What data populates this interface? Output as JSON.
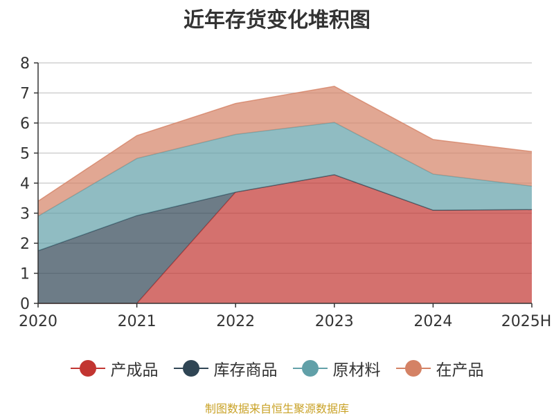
{
  "chart_data": {
    "type": "area",
    "stacked": true,
    "title": "近年存货变化堆积图",
    "ylabel": "",
    "xlabel": "",
    "categories": [
      "2020",
      "2021",
      "2022",
      "2023",
      "2024",
      "2025H"
    ],
    "ylim": [
      0,
      8
    ],
    "yticks": [
      "0",
      "1",
      "2",
      "3",
      "4",
      "5",
      "6",
      "7",
      "8"
    ],
    "grid": true,
    "legend_position": "bottom",
    "series": [
      {
        "name": "产成品",
        "color": "#c23531",
        "values": [
          0.0,
          0.0,
          3.7,
          4.28,
          3.1,
          3.12
        ]
      },
      {
        "name": "库存商品",
        "color": "#2f4554",
        "values": [
          1.75,
          2.92,
          0.0,
          0.0,
          0.0,
          0.0
        ]
      },
      {
        "name": "原材料",
        "color": "#61a0a8",
        "values": [
          1.15,
          1.9,
          1.92,
          1.74,
          1.2,
          0.78
        ]
      },
      {
        "name": "在产品",
        "color": "#d48265",
        "values": [
          0.5,
          0.76,
          1.03,
          1.2,
          1.15,
          1.15
        ]
      }
    ]
  },
  "source_text": "制图数据来自恒生聚源数据库"
}
